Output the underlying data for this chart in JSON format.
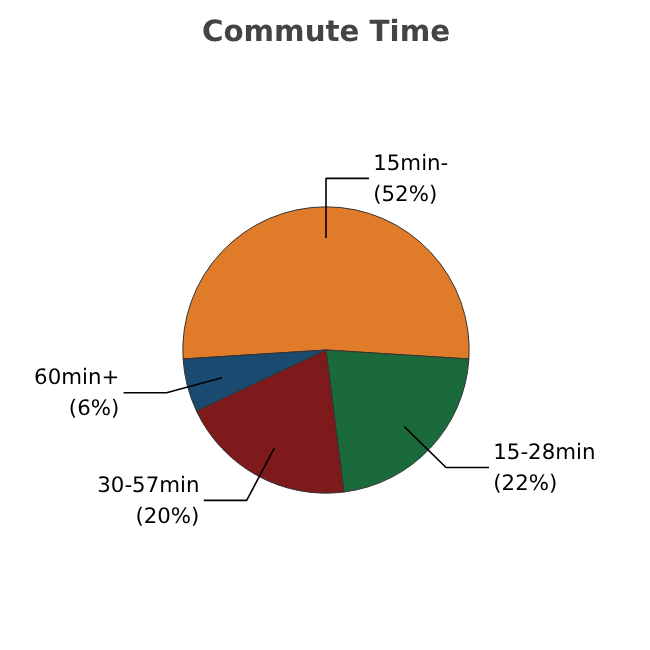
{
  "chart_data": {
    "type": "pie",
    "title": "Commute Time",
    "categories": [
      "15min-",
      "15-28min",
      "30-57min",
      "60min+"
    ],
    "values": [
      52,
      22,
      20,
      6
    ],
    "value_labels": [
      "(52%)",
      "(22%)",
      "(20%)",
      "(6%)"
    ],
    "colors": [
      "#e07b2a",
      "#1b6a3c",
      "#7e1a1c",
      "#1a4a70"
    ]
  }
}
